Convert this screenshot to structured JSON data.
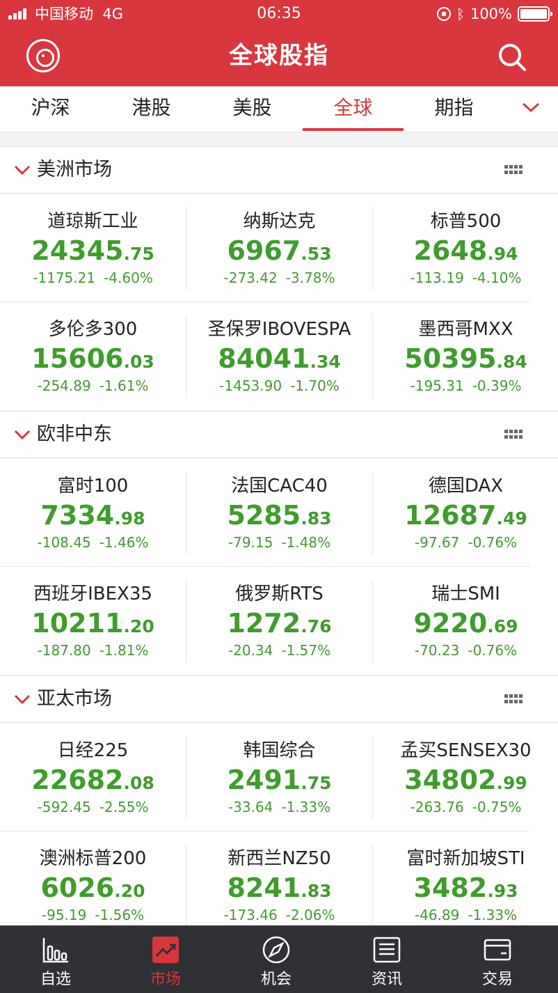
{
  "status_bar": {
    "carrier": "中国移动",
    "network": "4G",
    "time": "06:35",
    "battery": "100%"
  },
  "header": {
    "title": "全球股指"
  },
  "tabs": [
    {
      "label": "沪深",
      "active": false
    },
    {
      "label": "港股",
      "active": false
    },
    {
      "label": "美股",
      "active": false
    },
    {
      "label": "全球",
      "active": true
    },
    {
      "label": "期指",
      "active": false
    }
  ],
  "colors": {
    "brand": "#d8373f",
    "down": "#3f9c2d",
    "tabbar_bg": "#2f3136"
  },
  "sections": [
    {
      "title": "美洲市场",
      "indices": [
        {
          "name": "道琼斯工业",
          "price_int": "24345",
          "price_dec": ".75",
          "change": "-1175.21",
          "pct": "-4.60%"
        },
        {
          "name": "纳斯达克",
          "price_int": "6967",
          "price_dec": ".53",
          "change": "-273.42",
          "pct": "-3.78%"
        },
        {
          "name": "标普500",
          "price_int": "2648",
          "price_dec": ".94",
          "change": "-113.19",
          "pct": "-4.10%"
        },
        {
          "name": "多伦多300",
          "price_int": "15606",
          "price_dec": ".03",
          "change": "-254.89",
          "pct": "-1.61%"
        },
        {
          "name": "圣保罗IBOVESPA",
          "price_int": "84041",
          "price_dec": ".34",
          "change": "-1453.90",
          "pct": "-1.70%"
        },
        {
          "name": "墨西哥MXX",
          "price_int": "50395",
          "price_dec": ".84",
          "change": "-195.31",
          "pct": "-0.39%"
        }
      ]
    },
    {
      "title": "欧非中东",
      "indices": [
        {
          "name": "富时100",
          "price_int": "7334",
          "price_dec": ".98",
          "change": "-108.45",
          "pct": "-1.46%"
        },
        {
          "name": "法国CAC40",
          "price_int": "5285",
          "price_dec": ".83",
          "change": "-79.15",
          "pct": "-1.48%"
        },
        {
          "name": "德国DAX",
          "price_int": "12687",
          "price_dec": ".49",
          "change": "-97.67",
          "pct": "-0.76%"
        },
        {
          "name": "西班牙IBEX35",
          "price_int": "10211",
          "price_dec": ".20",
          "change": "-187.80",
          "pct": "-1.81%"
        },
        {
          "name": "俄罗斯RTS",
          "price_int": "1272",
          "price_dec": ".76",
          "change": "-20.34",
          "pct": "-1.57%"
        },
        {
          "name": "瑞士SMI",
          "price_int": "9220",
          "price_dec": ".69",
          "change": "-70.23",
          "pct": "-0.76%"
        }
      ]
    },
    {
      "title": "亚太市场",
      "indices": [
        {
          "name": "日经225",
          "price_int": "22682",
          "price_dec": ".08",
          "change": "-592.45",
          "pct": "-2.55%"
        },
        {
          "name": "韩国综合",
          "price_int": "2491",
          "price_dec": ".75",
          "change": "-33.64",
          "pct": "-1.33%"
        },
        {
          "name": "孟买SENSEX30",
          "price_int": "34802",
          "price_dec": ".99",
          "change": "-263.76",
          "pct": "-0.75%"
        },
        {
          "name": "澳洲标普200",
          "price_int": "6026",
          "price_dec": ".20",
          "change": "-95.19",
          "pct": "-1.56%"
        },
        {
          "name": "新西兰NZ50",
          "price_int": "8241",
          "price_dec": ".83",
          "change": "-173.46",
          "pct": "-2.06%"
        },
        {
          "name": "富时新加坡STI",
          "price_int": "3482",
          "price_dec": ".93",
          "change": "-46.89",
          "pct": "-1.33%"
        }
      ]
    }
  ],
  "bottom_tabs": [
    {
      "label": "自选",
      "icon": "bar-chart-icon",
      "active": false
    },
    {
      "label": "市场",
      "icon": "trend-up-icon",
      "active": true
    },
    {
      "label": "机会",
      "icon": "compass-icon",
      "active": false
    },
    {
      "label": "资讯",
      "icon": "news-icon",
      "active": false
    },
    {
      "label": "交易",
      "icon": "wallet-icon",
      "active": false
    }
  ]
}
